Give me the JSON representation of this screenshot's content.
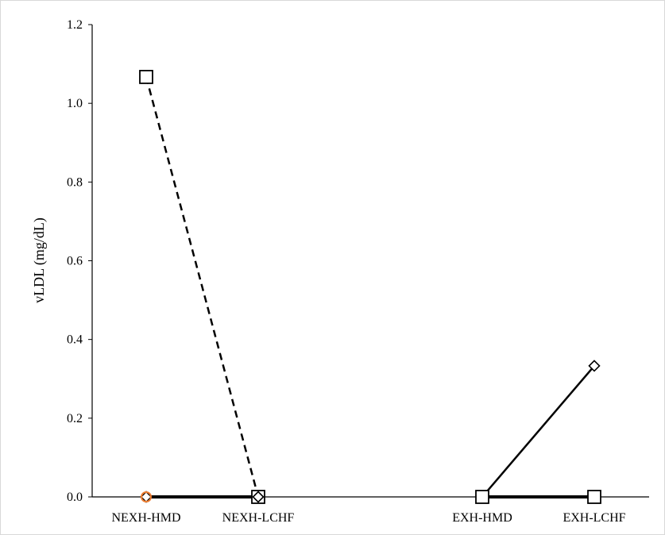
{
  "chart_data": {
    "type": "line",
    "title": "",
    "xlabel": "",
    "ylabel": "vLDL (mg/dL)",
    "ylim": [
      0,
      1.2
    ],
    "yticks": [
      "0.0",
      "0.2",
      "0.4",
      "0.6",
      "0.8",
      "1.0",
      "1.2"
    ],
    "categories": [
      "NEXH-HMD",
      "NEXH-LCHF",
      "EXH-HMD",
      "EXH-LCHF"
    ],
    "grid": false,
    "legend": "none",
    "series": [
      {
        "group": "NEXH",
        "x": [
          "NEXH-HMD",
          "NEXH-LCHF"
        ],
        "values": [
          1.067,
          0.0
        ],
        "marker": "square",
        "line": "dashed",
        "color": "#000000"
      },
      {
        "group": "NEXH",
        "x": [
          "NEXH-HMD",
          "NEXH-LCHF"
        ],
        "values": [
          0.0,
          0.0
        ],
        "marker": "diamond",
        "line": "solid",
        "color": "#000000"
      },
      {
        "group": "NEXH",
        "x": [
          "NEXH-HMD"
        ],
        "values": [
          0.0
        ],
        "marker": "circle",
        "line": "none",
        "color": "#ed7d31"
      },
      {
        "group": "EXH",
        "x": [
          "EXH-HMD",
          "EXH-LCHF"
        ],
        "values": [
          0.0,
          0.333
        ],
        "marker": "diamond",
        "line": "solid",
        "color": "#000000"
      },
      {
        "group": "EXH",
        "x": [
          "EXH-HMD",
          "EXH-LCHF"
        ],
        "values": [
          0.0,
          0.0
        ],
        "marker": "square",
        "line": "solid",
        "color": "#000000"
      }
    ]
  }
}
